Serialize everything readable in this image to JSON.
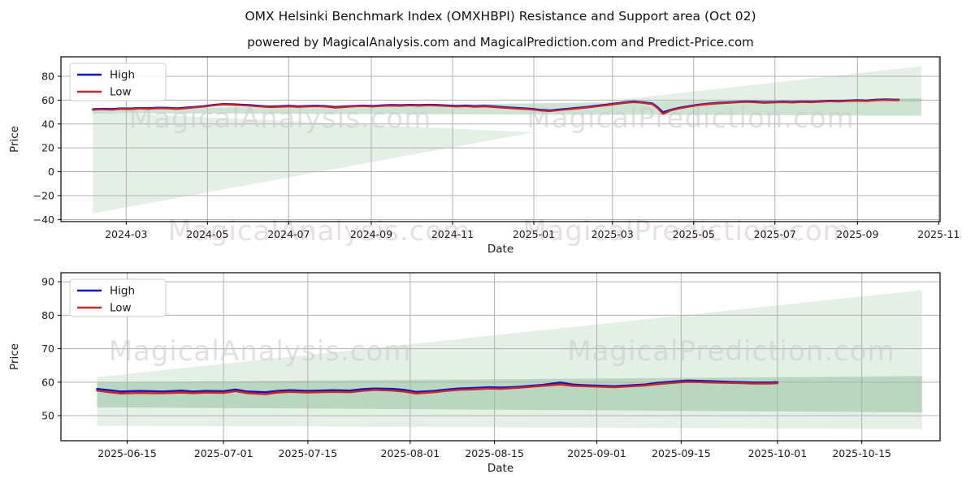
{
  "header": {
    "title": "OMX Helsinki Benchmark Index (OMXHBPI) Resistance and Support area (Oct 02)",
    "subtitle": "powered by MagicalAnalysis.com and MagicalPrediction.com and Predict-Price.com"
  },
  "legend": {
    "items": [
      {
        "label": "High",
        "color": "#1212cc"
      },
      {
        "label": "Low",
        "color": "#cc2525"
      }
    ]
  },
  "watermark": {
    "left": "MagicalAnalysis.com",
    "right": "MagicalPrediction.com"
  },
  "colors": {
    "high_line": "#1212cc",
    "low_line": "#cc2525",
    "band_green": "#2e8b3d",
    "grid": "#b0b0b0",
    "spine": "#000000",
    "tick_text": "#1a1a1a",
    "watermark_gray": "#c9c9c9",
    "watermark_pink": "#d8c9c9"
  },
  "chart_data": [
    {
      "type": "line",
      "title": "OMX Helsinki Benchmark Index (OMXHBPI) Resistance and Support area (Oct 02)",
      "subtitle": "powered by MagicalAnalysis.com and MagicalPrediction.com and Predict-Price.com",
      "xlabel": "Date",
      "ylabel": "Price",
      "xlim": [
        "2024-01-12",
        "2025-11-02"
      ],
      "ylim": [
        -41.8,
        96.3
      ],
      "grid": true,
      "legend_position": "upper-left",
      "x_ticks": [
        {
          "date": "2024-03-01",
          "label": "2024-03"
        },
        {
          "date": "2024-05-01",
          "label": "2024-05"
        },
        {
          "date": "2024-07-01",
          "label": "2024-07"
        },
        {
          "date": "2024-09-01",
          "label": "2024-09"
        },
        {
          "date": "2024-11-01",
          "label": "2024-11"
        },
        {
          "date": "2025-01-01",
          "label": "2025-01"
        },
        {
          "date": "2025-03-01",
          "label": "2025-03"
        },
        {
          "date": "2025-05-01",
          "label": "2025-05"
        },
        {
          "date": "2025-07-01",
          "label": "2025-07"
        },
        {
          "date": "2025-09-01",
          "label": "2025-09"
        },
        {
          "date": "2025-11-01",
          "label": "2025-11"
        }
      ],
      "y_ticks": [
        {
          "v": 80,
          "label": "80"
        },
        {
          "v": 60,
          "label": "60"
        },
        {
          "v": 40,
          "label": "40"
        },
        {
          "v": 20,
          "label": "20"
        },
        {
          "v": 0,
          "label": "0"
        },
        {
          "v": -20,
          "label": "−20"
        },
        {
          "v": -40,
          "label": "−40"
        }
      ],
      "x": [
        "2024-02-05",
        "2024-02-12",
        "2024-02-19",
        "2024-02-26",
        "2024-03-04",
        "2024-03-11",
        "2024-03-18",
        "2024-03-25",
        "2024-04-01",
        "2024-04-08",
        "2024-04-15",
        "2024-04-22",
        "2024-04-29",
        "2024-05-06",
        "2024-05-13",
        "2024-05-20",
        "2024-05-27",
        "2024-06-03",
        "2024-06-10",
        "2024-06-17",
        "2024-06-24",
        "2024-07-01",
        "2024-07-08",
        "2024-07-15",
        "2024-07-22",
        "2024-07-29",
        "2024-08-05",
        "2024-08-12",
        "2024-08-19",
        "2024-08-26",
        "2024-09-02",
        "2024-09-09",
        "2024-09-16",
        "2024-09-23",
        "2024-09-30",
        "2024-10-07",
        "2024-10-14",
        "2024-10-21",
        "2024-10-28",
        "2024-11-04",
        "2024-11-11",
        "2024-11-18",
        "2024-11-25",
        "2024-12-02",
        "2024-12-09",
        "2024-12-16",
        "2024-12-23",
        "2024-12-30",
        "2025-01-06",
        "2025-01-13",
        "2025-01-20",
        "2025-01-27",
        "2025-02-03",
        "2025-02-10",
        "2025-02-17",
        "2025-02-24",
        "2025-03-03",
        "2025-03-10",
        "2025-03-17",
        "2025-03-24",
        "2025-03-31",
        "2025-04-04",
        "2025-04-08",
        "2025-04-14",
        "2025-04-21",
        "2025-04-28",
        "2025-05-05",
        "2025-05-12",
        "2025-05-19",
        "2025-05-26",
        "2025-06-02",
        "2025-06-09",
        "2025-06-16",
        "2025-06-23",
        "2025-06-30",
        "2025-07-07",
        "2025-07-14",
        "2025-07-21",
        "2025-07-28",
        "2025-08-04",
        "2025-08-11",
        "2025-08-18",
        "2025-08-25",
        "2025-09-01",
        "2025-09-08",
        "2025-09-15",
        "2025-09-22",
        "2025-09-29",
        "2025-10-02"
      ],
      "series": [
        {
          "name": "High",
          "values": [
            52.4,
            52.8,
            52.6,
            53.1,
            53.0,
            53.5,
            53.3,
            53.7,
            53.6,
            53.2,
            53.8,
            54.4,
            55.1,
            56.1,
            56.8,
            56.6,
            56.2,
            55.8,
            55.2,
            54.7,
            55.0,
            55.3,
            54.9,
            55.2,
            55.4,
            55.1,
            54.3,
            54.8,
            55.2,
            55.5,
            55.2,
            55.7,
            56.0,
            55.8,
            56.1,
            55.9,
            56.2,
            56.0,
            55.6,
            55.2,
            55.5,
            55.0,
            55.3,
            54.8,
            54.2,
            53.7,
            53.3,
            52.8,
            51.9,
            51.4,
            52.2,
            52.9,
            53.6,
            54.4,
            55.3,
            56.2,
            57.2,
            58.2,
            58.9,
            58.3,
            57.3,
            54.0,
            49.9,
            52.0,
            53.8,
            55.1,
            56.3,
            57.1,
            57.7,
            58.1,
            58.6,
            59.0,
            58.8,
            58.3,
            58.5,
            58.8,
            58.5,
            58.9,
            58.7,
            59.1,
            59.5,
            59.3,
            59.7,
            60.0,
            59.7,
            60.4,
            60.7,
            60.4,
            60.5
          ]
        },
        {
          "name": "Low",
          "values": [
            51.8,
            52.3,
            52.0,
            52.6,
            52.4,
            53.0,
            52.7,
            53.2,
            53.0,
            52.6,
            53.2,
            53.9,
            54.6,
            55.6,
            56.3,
            56.0,
            55.6,
            55.2,
            54.6,
            54.1,
            54.4,
            54.7,
            54.3,
            54.6,
            54.9,
            54.5,
            53.6,
            54.2,
            54.7,
            55.0,
            54.6,
            55.1,
            55.4,
            55.2,
            55.6,
            55.3,
            55.7,
            55.4,
            55.0,
            54.6,
            54.9,
            54.4,
            54.7,
            54.2,
            53.6,
            53.1,
            52.7,
            52.2,
            51.3,
            50.7,
            51.6,
            52.3,
            53.0,
            53.8,
            54.7,
            55.6,
            56.6,
            57.6,
            58.3,
            57.7,
            56.6,
            53.2,
            48.3,
            51.4,
            53.2,
            54.6,
            55.8,
            56.6,
            57.2,
            57.6,
            58.1,
            58.5,
            58.2,
            57.7,
            58.0,
            58.3,
            57.9,
            58.4,
            58.2,
            58.6,
            59.0,
            58.8,
            59.2,
            59.5,
            59.2,
            59.9,
            60.2,
            59.9,
            60.0
          ]
        }
      ],
      "bands": [
        {
          "name": "support-fan-left",
          "alpha": 0.13,
          "points": [
            [
              "2024-02-05",
              50.0
            ],
            [
              "2025-01-01",
              33.0
            ],
            [
              "2024-02-05",
              -35.0
            ]
          ]
        },
        {
          "name": "resistance-fan-right",
          "alpha": 0.13,
          "points": [
            [
              "2025-02-20",
              58.5
            ],
            [
              "2025-10-19",
              88.5
            ],
            [
              "2025-10-19",
              58.5
            ]
          ]
        },
        {
          "name": "support-band",
          "alpha": 0.24,
          "points": [
            [
              "2024-02-05",
              52.5
            ],
            [
              "2025-10-19",
              61.5
            ],
            [
              "2025-10-19",
              47.0
            ],
            [
              "2024-02-05",
              49.0
            ]
          ]
        }
      ]
    },
    {
      "type": "line",
      "title": "",
      "xlabel": "Date",
      "ylabel": "Price",
      "xlim": [
        "2025-06-04",
        "2025-10-28"
      ],
      "ylim": [
        42.5,
        92.7
      ],
      "grid": true,
      "legend_position": "upper-left",
      "x_ticks": [
        {
          "date": "2025-06-15",
          "label": "2025-06-15"
        },
        {
          "date": "2025-07-01",
          "label": "2025-07-01"
        },
        {
          "date": "2025-07-15",
          "label": "2025-07-15"
        },
        {
          "date": "2025-08-01",
          "label": "2025-08-01"
        },
        {
          "date": "2025-08-15",
          "label": "2025-08-15"
        },
        {
          "date": "2025-09-01",
          "label": "2025-09-01"
        },
        {
          "date": "2025-09-15",
          "label": "2025-09-15"
        },
        {
          "date": "2025-10-01",
          "label": "2025-10-01"
        },
        {
          "date": "2025-10-15",
          "label": "2025-10-15"
        }
      ],
      "y_ticks": [
        {
          "v": 90,
          "label": "90"
        },
        {
          "v": 80,
          "label": "80"
        },
        {
          "v": 70,
          "label": "70"
        },
        {
          "v": 60,
          "label": "60"
        },
        {
          "v": 50,
          "label": "50"
        }
      ],
      "x": [
        "2025-06-10",
        "2025-06-12",
        "2025-06-14",
        "2025-06-17",
        "2025-06-19",
        "2025-06-21",
        "2025-06-24",
        "2025-06-26",
        "2025-06-28",
        "2025-07-01",
        "2025-07-03",
        "2025-07-05",
        "2025-07-08",
        "2025-07-10",
        "2025-07-12",
        "2025-07-15",
        "2025-07-17",
        "2025-07-19",
        "2025-07-22",
        "2025-07-24",
        "2025-07-26",
        "2025-07-29",
        "2025-07-31",
        "2025-08-02",
        "2025-08-05",
        "2025-08-07",
        "2025-08-09",
        "2025-08-12",
        "2025-08-14",
        "2025-08-16",
        "2025-08-19",
        "2025-08-21",
        "2025-08-23",
        "2025-08-26",
        "2025-08-28",
        "2025-08-30",
        "2025-09-02",
        "2025-09-04",
        "2025-09-06",
        "2025-09-09",
        "2025-09-11",
        "2025-09-13",
        "2025-09-16",
        "2025-09-18",
        "2025-09-20",
        "2025-09-23",
        "2025-09-25",
        "2025-09-27",
        "2025-09-30",
        "2025-10-01"
      ],
      "series": [
        {
          "name": "High",
          "values": [
            58.0,
            57.6,
            57.2,
            57.4,
            57.3,
            57.2,
            57.5,
            57.2,
            57.4,
            57.3,
            57.8,
            57.2,
            57.0,
            57.4,
            57.6,
            57.4,
            57.5,
            57.6,
            57.5,
            57.9,
            58.1,
            58.0,
            57.7,
            57.1,
            57.4,
            57.8,
            58.1,
            58.3,
            58.5,
            58.4,
            58.6,
            58.9,
            59.2,
            59.9,
            59.3,
            59.1,
            58.9,
            58.8,
            59.0,
            59.3,
            59.8,
            60.1,
            60.5,
            60.4,
            60.3,
            60.1,
            60.0,
            59.9,
            59.9,
            60.0
          ]
        },
        {
          "name": "Low",
          "values": [
            57.5,
            57.0,
            56.6,
            56.8,
            56.7,
            56.7,
            56.9,
            56.7,
            56.9,
            56.8,
            57.3,
            56.7,
            56.4,
            56.9,
            57.1,
            56.9,
            57.0,
            57.1,
            57.0,
            57.4,
            57.7,
            57.5,
            57.2,
            56.6,
            57.0,
            57.4,
            57.7,
            57.9,
            58.1,
            58.0,
            58.3,
            58.6,
            58.9,
            59.3,
            58.9,
            58.8,
            58.6,
            58.5,
            58.7,
            59.0,
            59.4,
            59.7,
            60.1,
            60.0,
            59.9,
            59.8,
            59.7,
            59.6,
            59.6,
            59.7
          ]
        }
      ],
      "bands": [
        {
          "name": "resistance-fan",
          "alpha": 0.13,
          "points": [
            [
              "2025-06-10",
              61.5
            ],
            [
              "2025-10-25",
              87.5
            ],
            [
              "2025-10-25",
              46.0
            ],
            [
              "2025-06-10",
              47.0
            ]
          ]
        },
        {
          "name": "support-band",
          "alpha": 0.24,
          "points": [
            [
              "2025-06-10",
              60.0
            ],
            [
              "2025-10-25",
              61.8
            ],
            [
              "2025-10-25",
              51.0
            ],
            [
              "2025-06-10",
              52.5
            ]
          ]
        }
      ]
    }
  ]
}
